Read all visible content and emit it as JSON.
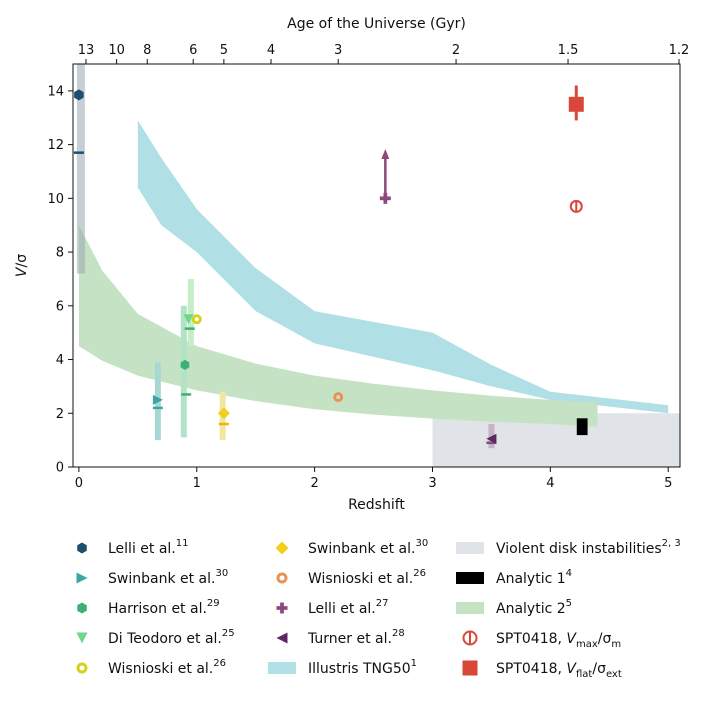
{
  "chart_data": {
    "type": "scatter",
    "xlabel": "Redshift",
    "ylabel": "V/σ",
    "top_xlabel": "Age of the Universe (Gyr)",
    "xlim": [
      -0.05,
      5.1
    ],
    "ylim": [
      0,
      15
    ],
    "x_ticks": [
      "0",
      "1",
      "2",
      "3",
      "4",
      "5"
    ],
    "y_ticks": [
      "0",
      "2",
      "4",
      "6",
      "8",
      "10",
      "12",
      "14"
    ],
    "top_ticks": [
      {
        "label": "13",
        "z": 0.06
      },
      {
        "label": "10",
        "z": 0.32
      },
      {
        "label": "8",
        "z": 0.58
      },
      {
        "label": "6",
        "z": 0.97
      },
      {
        "label": "5",
        "z": 1.23
      },
      {
        "label": "4",
        "z": 1.63
      },
      {
        "label": "3",
        "z": 2.2
      },
      {
        "label": "2",
        "z": 3.2
      },
      {
        "label": "1.5",
        "z": 4.15
      },
      {
        "label": "1.2",
        "z": 5.15
      }
    ],
    "bands": {
      "violent_disk": {
        "x": [
          3.0,
          5.1
        ],
        "y": [
          0,
          2.0
        ],
        "color": "#e0e3e7"
      },
      "illustris": {
        "color": "#b0e0e6",
        "upper": [
          [
            0.5,
            12.9
          ],
          [
            0.7,
            11.5
          ],
          [
            1.0,
            9.6
          ],
          [
            1.5,
            7.4
          ],
          [
            2.0,
            5.8
          ],
          [
            3.0,
            5.0
          ],
          [
            3.5,
            3.8
          ],
          [
            4.0,
            2.8
          ],
          [
            5.0,
            2.3
          ]
        ],
        "lower": [
          [
            0.5,
            10.4
          ],
          [
            0.7,
            9.0
          ],
          [
            1.0,
            8.0
          ],
          [
            1.5,
            5.8
          ],
          [
            2.0,
            4.6
          ],
          [
            3.0,
            3.6
          ],
          [
            3.5,
            3.0
          ],
          [
            4.0,
            2.5
          ],
          [
            5.0,
            2.0
          ]
        ]
      },
      "analytic2": {
        "color": "#c5e3c4",
        "upper": [
          [
            0.0,
            9.0
          ],
          [
            0.2,
            7.3
          ],
          [
            0.5,
            5.7
          ],
          [
            1.0,
            4.5
          ],
          [
            1.5,
            3.85
          ],
          [
            2.0,
            3.4
          ],
          [
            2.5,
            3.1
          ],
          [
            3.0,
            2.85
          ],
          [
            3.5,
            2.65
          ],
          [
            4.0,
            2.5
          ],
          [
            4.4,
            2.4
          ]
        ],
        "lower": [
          [
            0.0,
            4.5
          ],
          [
            0.2,
            3.95
          ],
          [
            0.5,
            3.4
          ],
          [
            1.0,
            2.85
          ],
          [
            1.5,
            2.45
          ],
          [
            2.0,
            2.15
          ],
          [
            2.5,
            1.95
          ],
          [
            3.0,
            1.8
          ],
          [
            3.5,
            1.68
          ],
          [
            4.0,
            1.6
          ],
          [
            4.4,
            1.5
          ]
        ]
      },
      "local_lelli": {
        "x": [
          0.0,
          0.04
        ],
        "y": [
          7.2,
          15
        ],
        "color": "#9aa6b2"
      }
    },
    "errorbars": [
      {
        "x": 0.67,
        "ylo": 1.0,
        "yhi": 3.9,
        "color": "#a8d8d4"
      },
      {
        "x": 0.89,
        "ylo": 1.1,
        "yhi": 6.0,
        "color": "#b2e2c8"
      },
      {
        "x": 0.95,
        "ylo": 4.5,
        "yhi": 7.0,
        "color": "#c6eec6"
      },
      {
        "x": 1.22,
        "ylo": 1.0,
        "yhi": 2.8,
        "color": "#f2e6a4"
      },
      {
        "x": 3.5,
        "ylo": 0.7,
        "yhi": 1.6,
        "color": "#c7b3c7"
      }
    ],
    "medians": [
      {
        "x": 0.0,
        "y": 11.7,
        "color": "#1f4e6e"
      },
      {
        "x": 0.67,
        "y": 2.2,
        "color": "#3aa5a3"
      },
      {
        "x": 0.91,
        "y": 2.7,
        "color": "#3db075"
      },
      {
        "x": 0.94,
        "y": 5.15,
        "color": "#3db075"
      },
      {
        "x": 1.23,
        "y": 1.6,
        "color": "#e6b800"
      },
      {
        "x": 3.5,
        "y": 0.9,
        "color": "#7a4f7a"
      }
    ],
    "points": [
      {
        "name": "Lelli et al. (z~0)",
        "x": 0.0,
        "y": 13.85,
        "marker": "hexagon",
        "color": "#1f4e6e",
        "size": 11
      },
      {
        "name": "Swinbank et al. (30)",
        "x": 0.67,
        "y": 2.5,
        "marker": "tri-right",
        "color": "#3aa5a3",
        "size": 10
      },
      {
        "name": "Harrison et al.",
        "x": 0.9,
        "y": 3.8,
        "marker": "hexagon",
        "color": "#3db075",
        "size": 10
      },
      {
        "name": "Di Teodoro et al.",
        "x": 0.93,
        "y": 5.5,
        "marker": "tri-down",
        "color": "#6fd68a",
        "size": 10
      },
      {
        "name": "Wisnioski et al. (z~1)",
        "x": 1.0,
        "y": 5.5,
        "marker": "ring",
        "color": "#d4d21a",
        "size": 10
      },
      {
        "name": "Swinbank et al. (z~1.2)",
        "x": 1.23,
        "y": 2.0,
        "marker": "diamond",
        "color": "#f2cf1a",
        "size": 12
      },
      {
        "name": "Wisnioski et al. (z~2.2)",
        "x": 2.2,
        "y": 2.6,
        "marker": "ring",
        "color": "#e89352",
        "size": 10
      },
      {
        "name": "Lelli et al. (z~2.6)",
        "x": 2.6,
        "y": 10.0,
        "marker": "plus",
        "color": "#8c4a7c",
        "size": 11
      },
      {
        "name": "Turner et al.",
        "x": 3.5,
        "y": 1.05,
        "marker": "tri-left",
        "color": "#5c2860",
        "size": 10
      },
      {
        "name": "Analytic 1",
        "x": 4.27,
        "y": 1.5,
        "marker": "rect",
        "color": "#000000",
        "size": 12
      },
      {
        "name": "SPT0418 Vmax/sigma_m",
        "x": 4.22,
        "y": 9.7,
        "marker": "ring-bar",
        "color": "#d9473a",
        "size": 14
      },
      {
        "name": "SPT0418 Vflat/sigma_ext",
        "x": 4.22,
        "y": 13.5,
        "marker": "square",
        "color": "#d9473a",
        "size": 15
      }
    ],
    "spt_flat_err": {
      "x": 4.22,
      "ylo": 12.9,
      "yhi": 14.2,
      "color": "#d9473a"
    },
    "lelli_arrow": {
      "x": 2.6,
      "y0": 10.0,
      "y1": 11.8,
      "color": "#8c4a7c"
    }
  },
  "legend": {
    "col1": [
      {
        "label": "Lelli et al.",
        "sup": "11",
        "marker": "hexagon",
        "color": "#1f4e6e"
      },
      {
        "label": "Swinbank et al.",
        "sup": "30",
        "marker": "tri-right",
        "color": "#3aa5a3"
      },
      {
        "label": "Harrison et al.",
        "sup": "29",
        "marker": "hexagon",
        "color": "#3db075"
      },
      {
        "label": "Di Teodoro et al.",
        "sup": "25",
        "marker": "tri-down",
        "color": "#6fd68a"
      },
      {
        "label": "Wisnioski et al.",
        "sup": "26",
        "marker": "ring",
        "color": "#d4d21a"
      }
    ],
    "col2": [
      {
        "label": "Swinbank et al.",
        "sup": "30",
        "marker": "diamond",
        "color": "#f2cf1a"
      },
      {
        "label": "Wisnioski et al.",
        "sup": "26",
        "marker": "ring",
        "color": "#e89352"
      },
      {
        "label": "Lelli et al.",
        "sup": "27",
        "marker": "plus",
        "color": "#8c4a7c"
      },
      {
        "label": "Turner et al.",
        "sup": "28",
        "marker": "tri-left",
        "color": "#5c2860"
      },
      {
        "label": "Illustris TNG50",
        "sup": "1",
        "marker": "patch",
        "color": "#b0e0e6"
      }
    ],
    "col3": [
      {
        "label": "Violent disk instabilities",
        "sup": "2, 3",
        "marker": "patch",
        "color": "#e0e3e7"
      },
      {
        "label": "Analytic 1",
        "sup": "4",
        "marker": "patch",
        "color": "#000000"
      },
      {
        "label": "Analytic 2",
        "sup": "5",
        "marker": "patch",
        "color": "#c5e3c4"
      },
      {
        "label": "SPT0418, ",
        "v": "V",
        "vsub": "max",
        "slash": "/σ",
        "ssub": "m",
        "marker": "ring-bar",
        "color": "#d9473a"
      },
      {
        "label": "SPT0418, ",
        "v": "V",
        "vsub": "flat",
        "slash": "/σ",
        "ssub": "ext",
        "marker": "square",
        "color": "#d9473a"
      }
    ]
  }
}
